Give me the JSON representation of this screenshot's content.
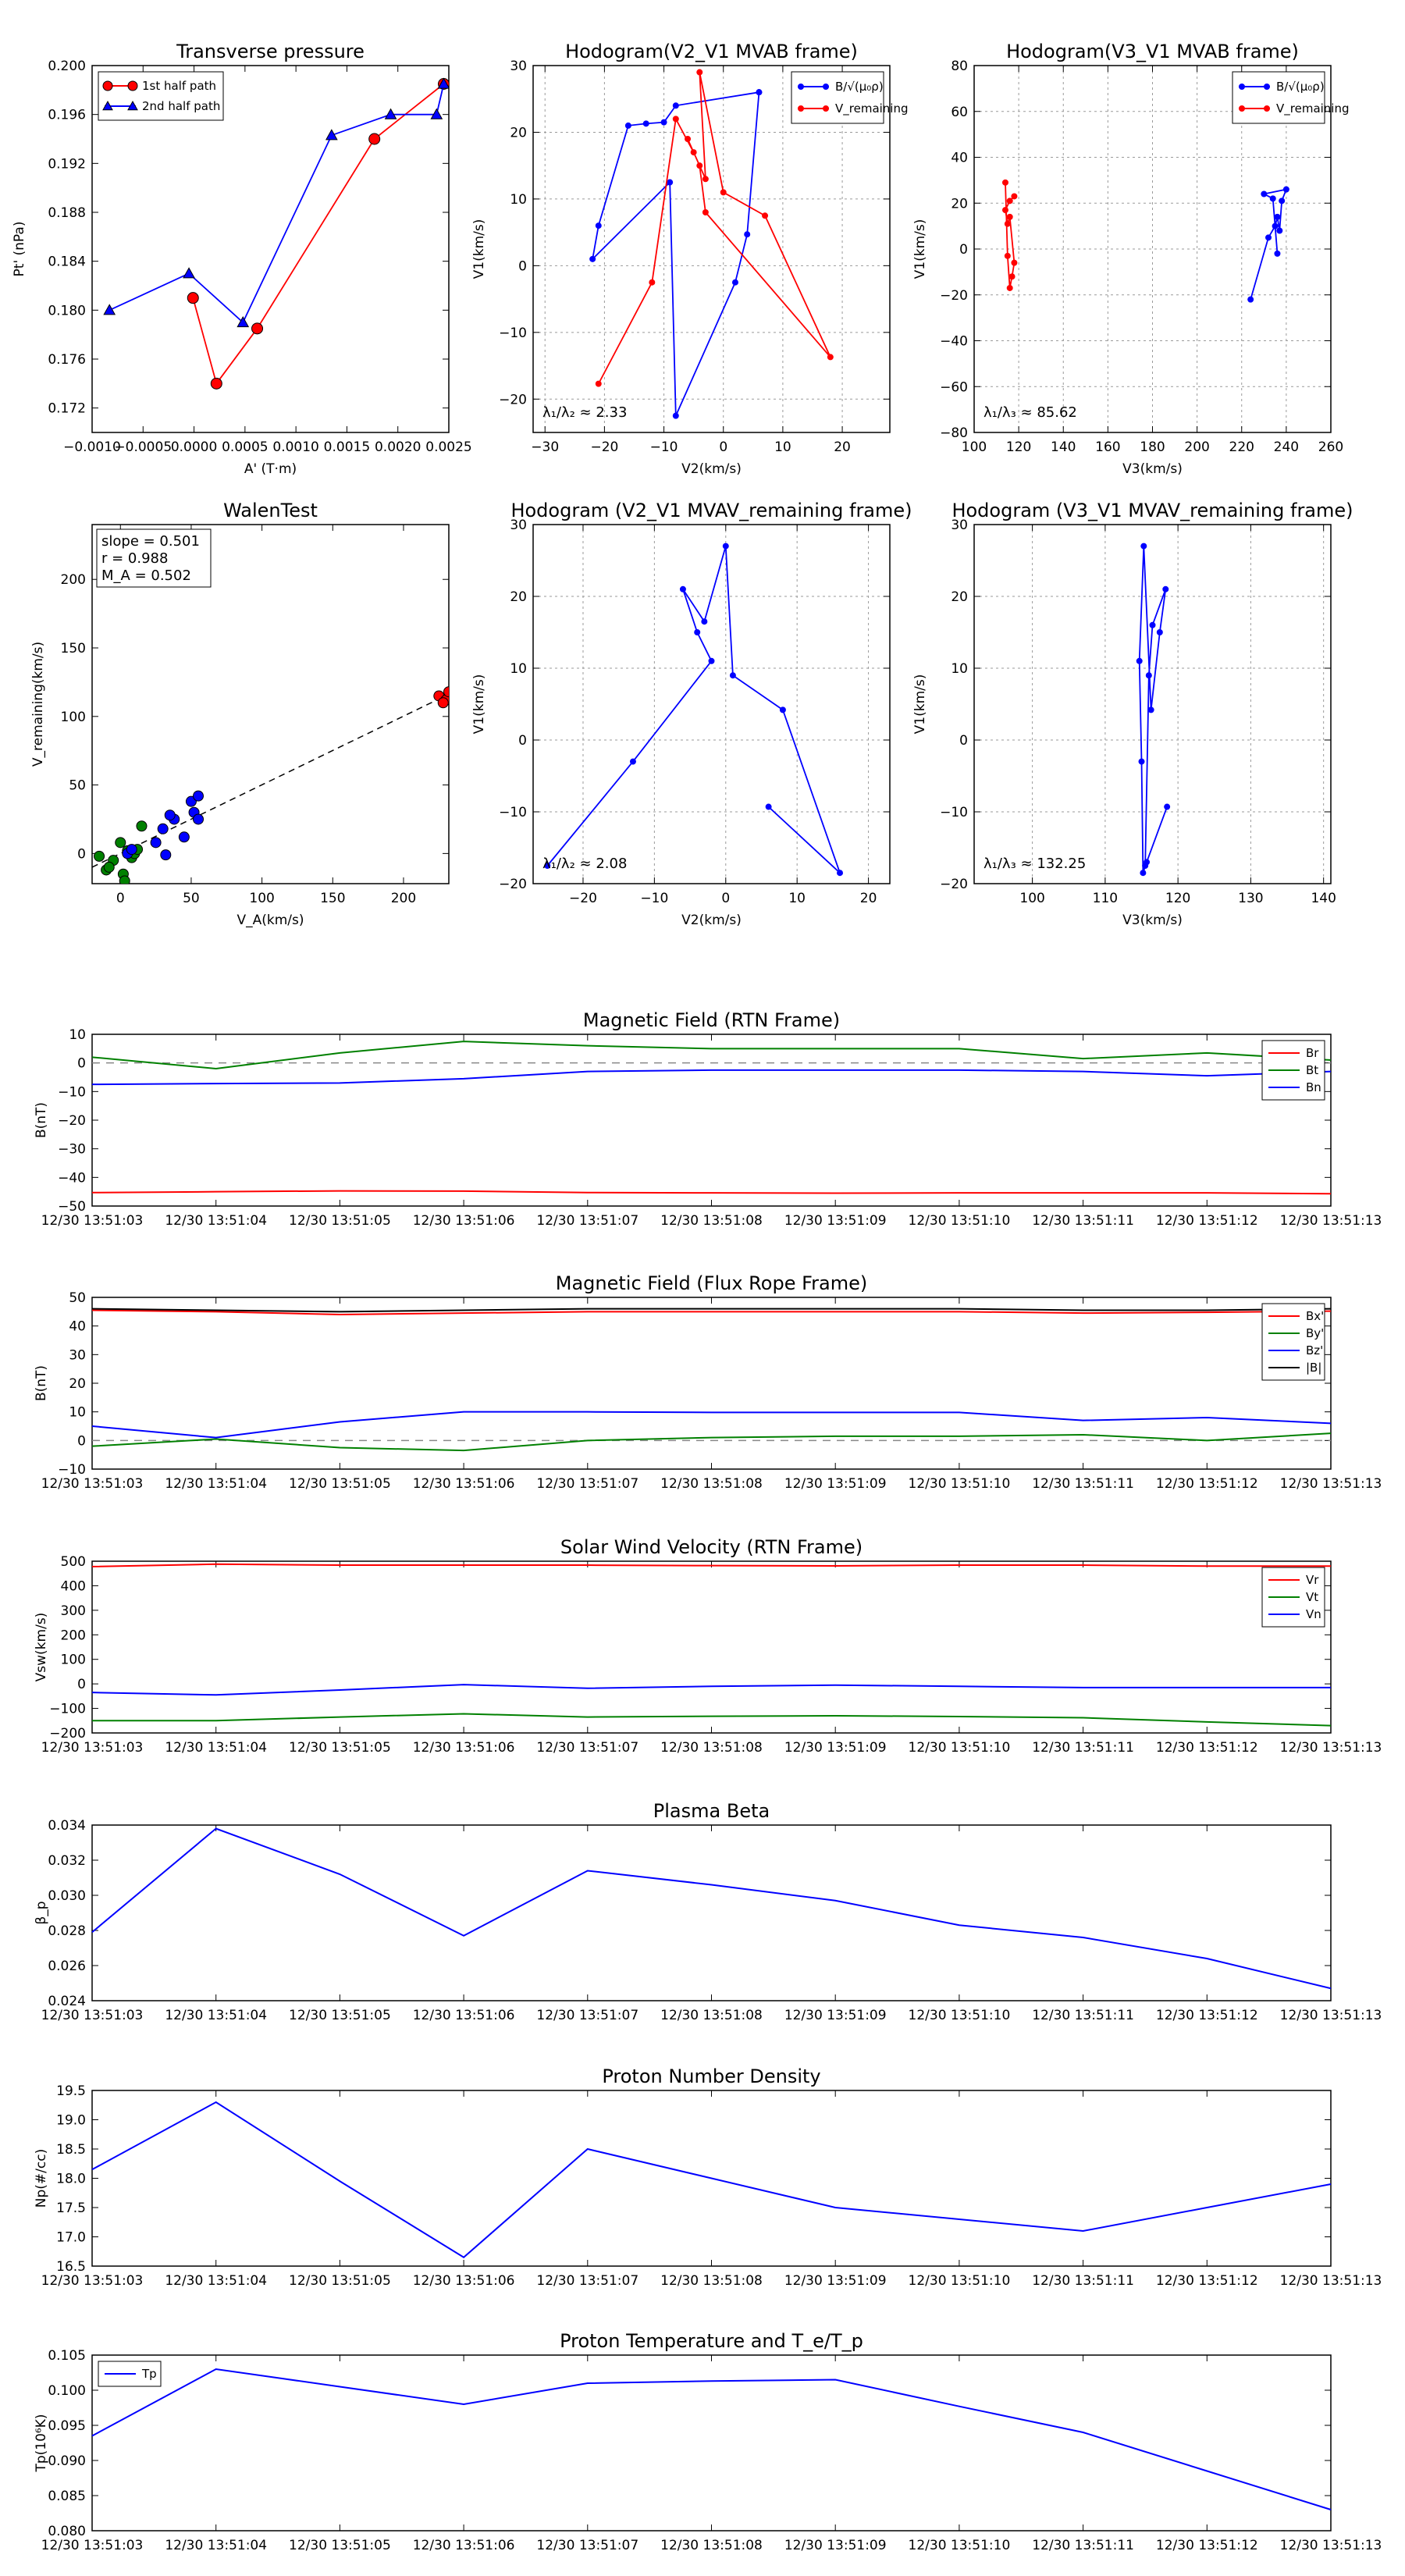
{
  "time_ticks": [
    "12/30 13:51:03",
    "12/30 13:51:04",
    "12/30 13:51:05",
    "12/30 13:51:06",
    "12/30 13:51:07",
    "12/30 13:51:08",
    "12/30 13:51:09",
    "12/30 13:51:10",
    "12/30 13:51:11",
    "12/30 13:51:12",
    "12/30 13:51:13"
  ],
  "chart_data": [
    {
      "id": "transverse-pressure",
      "type": "line",
      "title": "Transverse pressure",
      "xlabel": "A' (T·m)",
      "ylabel": "Pt' (nPa)",
      "xlim": [
        -0.001,
        0.0025
      ],
      "ylim": [
        0.17,
        0.2
      ],
      "xticks": [
        -0.001,
        -0.0005,
        0.0,
        0.0005,
        0.001,
        0.0015,
        0.002,
        0.0025
      ],
      "xticklabels": [
        "−0.0010",
        "−0.0005",
        "0.0000",
        "0.0005",
        "0.0010",
        "0.0015",
        "0.0020",
        "0.0025"
      ],
      "yticks": [
        0.172,
        0.176,
        0.18,
        0.184,
        0.188,
        0.192,
        0.196,
        0.2
      ],
      "yticklabels": [
        "0.172",
        "0.176",
        "0.180",
        "0.184",
        "0.188",
        "0.192",
        "0.196",
        "0.200"
      ],
      "legend": "top-left",
      "series": [
        {
          "name": "1st half path",
          "color": "#ff0000",
          "marker": "circle",
          "x": [
            0.00245,
            0.00177,
            0.00062,
            0.00022,
            -1e-05
          ],
          "y": [
            0.1985,
            0.194,
            0.1785,
            0.174,
            0.181
          ]
        },
        {
          "name": "2nd half path",
          "color": "#0000ff",
          "marker": "triangle",
          "x": [
            -0.00083,
            -5e-05,
            0.00048,
            0.00135,
            0.00193,
            0.00238,
            0.00245
          ],
          "y": [
            0.18,
            0.183,
            0.179,
            0.1943,
            0.196,
            0.196,
            0.1985
          ]
        }
      ]
    },
    {
      "id": "hodogram-v2-v1-mvab",
      "type": "line",
      "title": "Hodogram(V2_V1 MVAB frame)",
      "xlabel": "V2(km/s)",
      "ylabel": "V1(km/s)",
      "xlim": [
        -32,
        28
      ],
      "ylim": [
        -25,
        30
      ],
      "xticks": [
        -30,
        -20,
        -10,
        0,
        10,
        20
      ],
      "yticks": [
        -20,
        -10,
        0,
        10,
        20,
        30
      ],
      "grid": true,
      "legend": "top-right",
      "annotation": "λ₁/λ₂ ≈ 2.33",
      "series": [
        {
          "name": "B/√(μ₀ρ)",
          "color": "#0000ff",
          "x": [
            6,
            -8,
            -10,
            -13,
            -16,
            -21,
            -22,
            -9,
            -8,
            2,
            4,
            6
          ],
          "y": [
            26,
            24,
            21.5,
            21.3,
            21,
            6,
            1,
            12.5,
            -22.5,
            -2.5,
            4.7,
            26
          ]
        },
        {
          "name": "V_remaining",
          "color": "#ff0000",
          "x": [
            -21,
            -12,
            -8,
            -5,
            -3,
            -4,
            0,
            7,
            18,
            -3,
            -4,
            -6
          ],
          "y": [
            -17.7,
            -2.5,
            22,
            17,
            13,
            29,
            11,
            7.5,
            -13.7,
            8,
            15,
            19
          ]
        }
      ]
    },
    {
      "id": "hodogram-v3-v1-mvab",
      "type": "line",
      "title": "Hodogram(V3_V1 MVAB frame)",
      "xlabel": "V3(km/s)",
      "ylabel": "V1(km/s)",
      "xlim": [
        100,
        260
      ],
      "ylim": [
        -80,
        80
      ],
      "xticks": [
        100,
        120,
        140,
        160,
        180,
        200,
        220,
        240,
        260
      ],
      "yticks": [
        -80,
        -60,
        -40,
        -20,
        0,
        20,
        40,
        60,
        80
      ],
      "grid": true,
      "legend": "top-right",
      "annotation": "λ₁/λ₃ ≈ 85.62",
      "series": [
        {
          "name": "B/√(μ₀ρ)",
          "color": "#0000ff",
          "x": [
            224,
            232,
            235,
            236,
            237,
            238,
            240,
            230,
            234,
            236
          ],
          "y": [
            -22,
            5,
            10,
            14,
            8,
            21,
            26,
            24,
            22,
            -2
          ]
        },
        {
          "name": "V_remaining",
          "color": "#ff0000",
          "x": [
            114,
            115,
            116,
            117,
            118,
            116,
            115,
            114,
            116,
            118
          ],
          "y": [
            29,
            -3,
            -17,
            -12,
            -6,
            14,
            11,
            17,
            21,
            23
          ]
        }
      ]
    },
    {
      "id": "walen-test",
      "type": "scatter",
      "title": "WalenTest",
      "xlabel": "V_A(km/s)",
      "ylabel": "V_remaining(km/s)",
      "xlim": [
        -20,
        232
      ],
      "ylim": [
        -22,
        240
      ],
      "xticks": [
        0,
        50,
        100,
        150,
        200
      ],
      "yticks": [
        0,
        50,
        100,
        150,
        200
      ],
      "annotations": [
        "slope = 0.501",
        "r = 0.988",
        "M_A = 0.502"
      ],
      "fit_line": {
        "slope": 0.501,
        "intercept": 0,
        "color": "#000000"
      },
      "series": [
        {
          "name": "green",
          "color": "#008000",
          "x": [
            -15,
            -10,
            -5,
            0,
            2,
            5,
            8,
            10,
            12,
            15,
            -8,
            3
          ],
          "y": [
            -2,
            -12,
            -5,
            8,
            -15,
            2,
            -3,
            0,
            3,
            20,
            -10,
            -20
          ]
        },
        {
          "name": "blue",
          "color": "#0000ff",
          "x": [
            5,
            8,
            25,
            30,
            32,
            38,
            45,
            50,
            52,
            55,
            55,
            35
          ],
          "y": [
            0,
            3,
            8,
            18,
            -1,
            25,
            12,
            38,
            30,
            25,
            42,
            28
          ]
        },
        {
          "name": "red",
          "color": "#ff0000",
          "x": [
            225,
            230,
            232,
            228
          ],
          "y": [
            115,
            112,
            118,
            110
          ]
        }
      ]
    },
    {
      "id": "hodogram-v2-v1-mvav",
      "type": "line",
      "title": "Hodogram (V2_V1 MVAV_remaining frame)",
      "xlabel": "V2(km/s)",
      "ylabel": "V1(km/s)",
      "xlim": [
        -27,
        23
      ],
      "ylim": [
        -20,
        30
      ],
      "xticks": [
        -20,
        -10,
        0,
        10,
        20
      ],
      "yticks": [
        -20,
        -10,
        0,
        10,
        20,
        30
      ],
      "grid": true,
      "annotation": "λ₁/λ₂ ≈ 2.08",
      "series": [
        {
          "name": "V_remaining",
          "color": "#0000ff",
          "x": [
            -25,
            -13,
            -2,
            -4,
            -6,
            -3,
            0,
            1,
            8,
            16,
            6
          ],
          "y": [
            -17.5,
            -3,
            11,
            15,
            21,
            16.5,
            27,
            9,
            4.2,
            -18.5,
            -9.3
          ]
        }
      ]
    },
    {
      "id": "hodogram-v3-v1-mvav",
      "type": "line",
      "title": "Hodogram (V3_V1 MVAV_remaining frame)",
      "xlabel": "V3(km/s)",
      "ylabel": "V1(km/s)",
      "xlim": [
        92,
        141
      ],
      "ylim": [
        -20,
        30
      ],
      "xticks": [
        100,
        110,
        120,
        130,
        140
      ],
      "yticks": [
        -20,
        -10,
        0,
        10,
        20,
        30
      ],
      "grid": true,
      "annotation": "λ₁/λ₃ ≈ 132.25",
      "series": [
        {
          "name": "V_remaining",
          "color": "#0000ff",
          "x": [
            118.5,
            115.7,
            115.2,
            115.0,
            114.7,
            115.3,
            116.3,
            117.5,
            118.3,
            116.5,
            116.0,
            115.5
          ],
          "y": [
            -9.3,
            -17,
            -18.5,
            -3,
            11,
            27,
            4.2,
            15,
            21,
            16,
            9,
            -17.5
          ]
        }
      ]
    },
    {
      "id": "magnetic-field-rtn",
      "type": "line",
      "title": "Magnetic Field (RTN Frame)",
      "ylabel": "B(nT)",
      "ylim": [
        -50,
        10
      ],
      "yticks": [
        -50,
        -40,
        -30,
        -20,
        -10,
        0,
        10
      ],
      "zero_line": true,
      "legend": "top-right",
      "x": [
        0,
        1,
        2,
        3,
        4,
        5,
        6,
        7,
        8,
        9,
        10
      ],
      "series": [
        {
          "name": "Br",
          "color": "#ff0000",
          "values": [
            -45.3,
            -45.0,
            -44.7,
            -44.8,
            -45.3,
            -45.4,
            -45.5,
            -45.4,
            -45.4,
            -45.4,
            -45.7
          ]
        },
        {
          "name": "Bt",
          "color": "#008000",
          "values": [
            2.0,
            -2.0,
            3.5,
            7.5,
            6.0,
            5.0,
            5.0,
            5.0,
            1.5,
            3.5,
            1.0
          ]
        },
        {
          "name": "Bn",
          "color": "#0000ff",
          "values": [
            -7.5,
            -7.2,
            -7.0,
            -5.5,
            -3.0,
            -2.5,
            -2.5,
            -2.5,
            -3.0,
            -4.5,
            -3.0
          ]
        }
      ]
    },
    {
      "id": "magnetic-field-flux-rope",
      "type": "line",
      "title": "Magnetic Field (Flux Rope Frame)",
      "ylabel": "B(nT)",
      "ylim": [
        -10,
        50
      ],
      "yticks": [
        -10,
        0,
        10,
        20,
        30,
        40,
        50
      ],
      "zero_line": true,
      "legend": "top-right",
      "x": [
        0,
        1,
        2,
        3,
        4,
        5,
        6,
        7,
        8,
        9,
        10
      ],
      "series": [
        {
          "name": "Bx'",
          "color": "#ff0000",
          "values": [
            45.5,
            45.0,
            44.0,
            44.5,
            45.0,
            45.0,
            45.0,
            45.0,
            44.5,
            44.8,
            45.2
          ]
        },
        {
          "name": "By'",
          "color": "#008000",
          "values": [
            -2.0,
            0.5,
            -2.5,
            -3.5,
            0.0,
            1.0,
            1.5,
            1.5,
            2.0,
            0.0,
            2.5
          ]
        },
        {
          "name": "Bz'",
          "color": "#0000ff",
          "values": [
            5.0,
            1.0,
            6.5,
            10.0,
            10.0,
            9.8,
            9.8,
            9.8,
            7.0,
            8.0,
            6.0
          ]
        },
        {
          "name": "|B|",
          "color": "#000000",
          "values": [
            46.0,
            45.5,
            45.0,
            45.5,
            46.0,
            46.0,
            46.0,
            46.0,
            45.5,
            45.5,
            46.0
          ]
        }
      ]
    },
    {
      "id": "solar-wind-velocity",
      "type": "line",
      "title": "Solar Wind Velocity (RTN Frame)",
      "ylabel": "Vsw(km/s)",
      "ylim": [
        -200,
        500
      ],
      "yticks": [
        -200,
        -100,
        0,
        100,
        200,
        300,
        400,
        500
      ],
      "legend": "top-right",
      "x": [
        0,
        1,
        2,
        3,
        4,
        5,
        6,
        7,
        8,
        9,
        10
      ],
      "series": [
        {
          "name": "Vr",
          "color": "#ff0000",
          "values": [
            478,
            488,
            484,
            484,
            484,
            482,
            481,
            484,
            484,
            480,
            480
          ]
        },
        {
          "name": "Vt",
          "color": "#008000",
          "values": [
            -150,
            -150,
            -135,
            -122,
            -135,
            -132,
            -130,
            -133,
            -138,
            -155,
            -170
          ]
        },
        {
          "name": "Vn",
          "color": "#0000ff",
          "values": [
            -35,
            -45,
            -25,
            -3,
            -18,
            -10,
            -5,
            -10,
            -15,
            -15,
            -15
          ]
        }
      ]
    },
    {
      "id": "plasma-beta",
      "type": "line",
      "title": "Plasma Beta",
      "ylabel": "β_p",
      "ylim": [
        0.024,
        0.034
      ],
      "yticks": [
        0.024,
        0.026,
        0.028,
        0.03,
        0.032,
        0.034
      ],
      "yticklabels": [
        "0.024",
        "0.026",
        "0.028",
        "0.030",
        "0.032",
        "0.034"
      ],
      "x": [
        0,
        1,
        2,
        3,
        4,
        5,
        6,
        7,
        8,
        9,
        10
      ],
      "series": [
        {
          "name": "beta",
          "color": "#0000ff",
          "values": [
            0.0279,
            0.0338,
            0.0312,
            0.0277,
            0.0314,
            0.0306,
            0.0297,
            0.0283,
            0.0276,
            0.0264,
            0.0247
          ]
        }
      ]
    },
    {
      "id": "proton-number-density",
      "type": "line",
      "title": "Proton Number Density",
      "ylabel": "Np(#/cc)",
      "ylim": [
        16.5,
        19.5
      ],
      "yticks": [
        16.5,
        17.0,
        17.5,
        18.0,
        18.5,
        19.0,
        19.5
      ],
      "yticklabels": [
        "16.5",
        "17.0",
        "17.5",
        "18.0",
        "18.5",
        "19.0",
        "19.5"
      ],
      "x": [
        0,
        1,
        2,
        3,
        4,
        5,
        6,
        7,
        8,
        9,
        10
      ],
      "series": [
        {
          "name": "Np",
          "color": "#0000ff",
          "values": [
            18.15,
            19.3,
            17.95,
            16.65,
            18.5,
            18.0,
            17.5,
            17.3,
            17.1,
            17.5,
            17.9
          ]
        }
      ]
    },
    {
      "id": "proton-temperature",
      "type": "line",
      "title": "Proton Temperature and T_e/T_p",
      "ylabel": "Tp(10⁶K)",
      "ylim": [
        0.08,
        0.105
      ],
      "yticks": [
        0.08,
        0.085,
        0.09,
        0.095,
        0.1,
        0.105
      ],
      "yticklabels": [
        "0.080",
        "0.085",
        "0.090",
        "0.095",
        "0.100",
        "0.105"
      ],
      "legend": "top-left",
      "x": [
        0,
        1,
        2,
        3,
        4,
        5,
        6,
        7,
        8,
        9,
        10
      ],
      "series": [
        {
          "name": "Tp",
          "color": "#0000ff",
          "values": [
            0.0935,
            0.103,
            0.1005,
            0.098,
            0.101,
            0.1013,
            0.1015,
            0.0977,
            0.094,
            0.0885,
            0.083
          ]
        }
      ]
    }
  ]
}
